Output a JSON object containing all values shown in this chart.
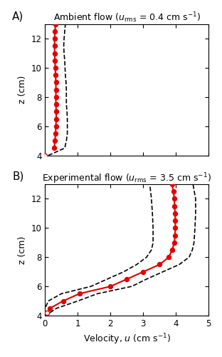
{
  "panel_A": {
    "title": "Ambient flow ($u_{\\mathrm{rms}}$ = 0.4 cm s$^{-1}$)",
    "z_red": [
      4.0,
      4.5,
      5.0,
      5.5,
      6.0,
      6.5,
      7.0,
      7.5,
      8.0,
      8.5,
      9.0,
      9.5,
      10.0,
      10.5,
      11.0,
      11.5,
      12.0,
      12.5,
      13.0
    ],
    "u_red": [
      0.0,
      0.28,
      0.3,
      0.32,
      0.33,
      0.34,
      0.34,
      0.33,
      0.33,
      0.33,
      0.33,
      0.32,
      0.31,
      0.3,
      0.29,
      0.29,
      0.29,
      0.3,
      0.32
    ],
    "z_lower": [
      4.0,
      4.5,
      5.0,
      5.5,
      6.0,
      6.5,
      7.0,
      7.5,
      8.0,
      8.5,
      9.0,
      9.5,
      10.0,
      10.5,
      11.0,
      11.5,
      12.0,
      12.5,
      13.0
    ],
    "u_lower": [
      -0.1,
      -0.08,
      -0.04,
      -0.02,
      -0.02,
      -0.01,
      -0.01,
      -0.01,
      -0.01,
      -0.01,
      -0.02,
      -0.02,
      -0.03,
      -0.03,
      -0.04,
      -0.04,
      -0.04,
      -0.02,
      0.0
    ],
    "z_upper": [
      4.0,
      4.5,
      5.0,
      5.5,
      6.0,
      6.5,
      7.0,
      7.5,
      8.0,
      8.5,
      9.0,
      9.5,
      10.0,
      10.5,
      11.0,
      11.5,
      12.0,
      12.5,
      13.0
    ],
    "u_upper": [
      0.1,
      0.6,
      0.65,
      0.68,
      0.68,
      0.68,
      0.67,
      0.65,
      0.65,
      0.65,
      0.64,
      0.62,
      0.61,
      0.6,
      0.58,
      0.57,
      0.58,
      0.6,
      0.62
    ],
    "xlim": [
      0,
      5
    ],
    "ylim": [
      4,
      13
    ],
    "ylabel": "z (cm)",
    "label": "A)"
  },
  "panel_B": {
    "title": "Experimental flow ($u_{\\mathrm{rms}}$ = 3.5 cm s$^{-1}$)",
    "z_red": [
      4.2,
      4.5,
      5.0,
      5.5,
      6.0,
      6.5,
      7.0,
      7.5,
      8.0,
      8.5,
      9.0,
      9.5,
      10.0,
      10.5,
      11.0,
      11.5,
      12.0,
      12.5,
      13.0
    ],
    "u_red": [
      0.05,
      0.15,
      0.55,
      1.05,
      2.0,
      2.5,
      3.0,
      3.5,
      3.78,
      3.88,
      3.95,
      3.97,
      3.98,
      3.98,
      3.97,
      3.96,
      3.95,
      3.92,
      3.88
    ],
    "z_lower": [
      4.2,
      4.5,
      5.0,
      5.5,
      6.0,
      6.5,
      7.0,
      7.5,
      8.0,
      8.5,
      9.0,
      10.0,
      11.0,
      12.0,
      13.0
    ],
    "u_lower": [
      -0.05,
      0.0,
      0.1,
      0.5,
      1.4,
      1.9,
      2.4,
      2.8,
      3.1,
      3.25,
      3.3,
      3.3,
      3.28,
      3.25,
      3.2
    ],
    "z_upper": [
      4.2,
      4.5,
      5.0,
      5.5,
      6.0,
      6.5,
      7.0,
      7.5,
      8.0,
      8.5,
      9.0,
      10.0,
      11.0,
      12.0,
      13.0
    ],
    "u_upper": [
      0.15,
      0.35,
      1.0,
      1.6,
      2.65,
      3.1,
      3.6,
      4.1,
      4.4,
      4.5,
      4.55,
      4.58,
      4.6,
      4.6,
      4.52
    ],
    "xlim": [
      0,
      5
    ],
    "ylim": [
      4,
      13
    ],
    "xlabel": "Velocity, $u$ (cm s$^{-1}$)",
    "ylabel": "z (cm)",
    "label": "B)"
  },
  "red_color": "#e00000",
  "dashed_color": "#000000"
}
